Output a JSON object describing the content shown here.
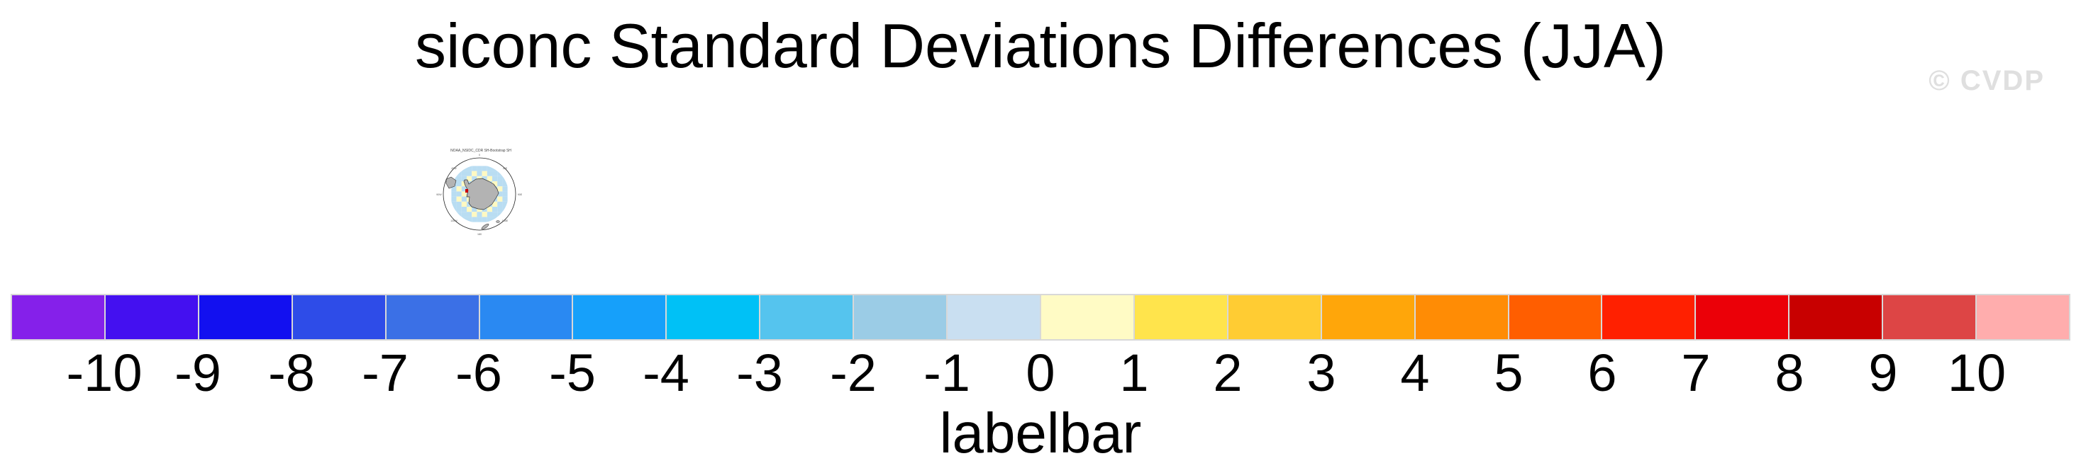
{
  "page": {
    "title": "siconc Standard Deviations Differences (JJA)",
    "watermark": "© CVDP"
  },
  "map": {
    "title": "NOAA_NSIDC_CDR SH-Bootstrap SH",
    "tick_labels": [
      "0",
      "45E",
      "90E",
      "135E",
      "180",
      "135W",
      "90W",
      "45W"
    ],
    "land_color": "#b3b3b3",
    "cell_yellow": "#fff9c2",
    "cell_blue": "#b9ddf2",
    "cell_red": "#cc0000",
    "outline_color": "#222222"
  },
  "chart_data": {
    "type": "heatmap",
    "title": "siconc Standard Deviations Differences (JJA)",
    "subtitle": "NOAA_NSIDC_CDR SH-Bootstrap SH",
    "colorbar": {
      "label": "labelbar",
      "tick_values": [
        -10,
        -9,
        -8,
        -7,
        -6,
        -5,
        -4,
        -3,
        -2,
        -1,
        0,
        1,
        2,
        3,
        4,
        5,
        6,
        7,
        8,
        9,
        10
      ],
      "colors": [
        "#8520ea",
        "#4410f0",
        "#1210f0",
        "#2e4ce8",
        "#3b70e6",
        "#2a89f2",
        "#16a0fa",
        "#00c1f6",
        "#55c4ee",
        "#9bcce6",
        "#c9dff1",
        "#fffbc5",
        "#ffe44c",
        "#ffcc33",
        "#ffa60a",
        "#ff8c05",
        "#ff5e00",
        "#ff2000",
        "#eb0008",
        "#c80000",
        "#dd4545",
        "#ffadad"
      ],
      "legend_position": "bottom",
      "grid": false
    }
  }
}
